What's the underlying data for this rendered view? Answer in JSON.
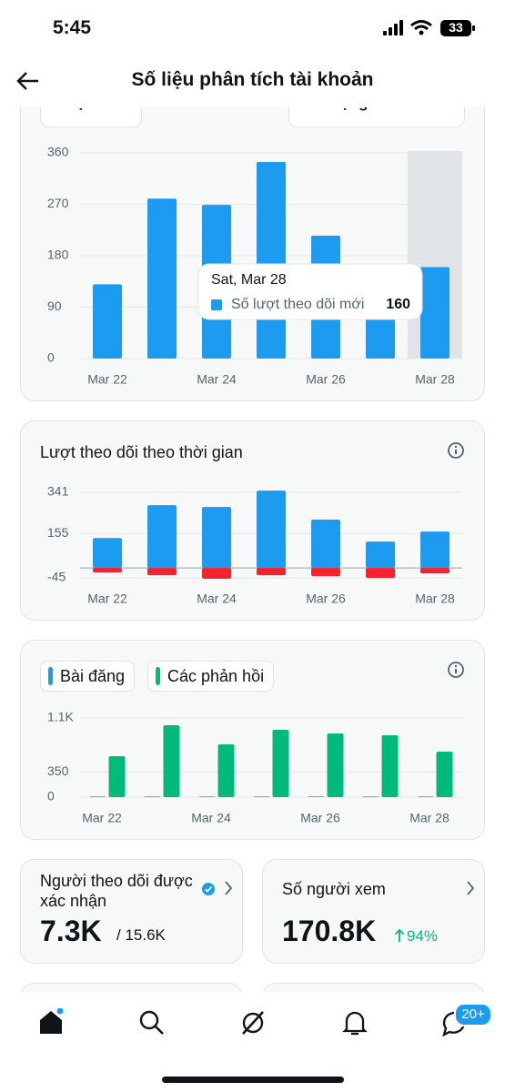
{
  "status_bar": {
    "time": "5:45",
    "battery": "33"
  },
  "header": {
    "title": "Số liệu phân tích tài khoản"
  },
  "controls": {
    "period": "Chọn",
    "chart_style": "Dạng thanh"
  },
  "chart_data": [
    {
      "type": "bar",
      "categories": [
        "Mar 22",
        null,
        "Mar 24",
        null,
        "Mar 26",
        null,
        "Mar 28"
      ],
      "values": [
        130,
        280,
        269,
        344,
        215,
        110,
        160
      ],
      "color": "#1d9bf0",
      "ylim": [
        0,
        360
      ],
      "yticks": [
        0,
        90,
        180,
        270,
        360
      ],
      "grid": true,
      "tooltip": {
        "title": "Sat, Mar 28",
        "label": "Số lượt theo dõi mới"
      }
    },
    {
      "type": "bar",
      "stacked": true,
      "title": "Lượt theo dõi theo thời gian",
      "categories": [
        "Mar 22",
        null,
        "Mar 24",
        null,
        "Mar 26",
        null,
        "Mar 28"
      ],
      "series": [
        {
          "color": "#1d9bf0",
          "values": [
            135,
            283,
            275,
            349,
            218,
            119,
            164
          ]
        },
        {
          "color": "#f4212e",
          "values": [
            -20,
            -33,
            -49,
            -33,
            -37,
            -45,
            -25
          ]
        }
      ],
      "ylim": [
        -60,
        360
      ],
      "yticks": [
        -45,
        155,
        341
      ],
      "grid": true
    },
    {
      "type": "bar",
      "stacked": false,
      "categories": [
        "Mar 22",
        null,
        "Mar 24",
        null,
        "Mar 26",
        null,
        "Mar 28"
      ],
      "series": [
        {
          "name": "Bài đăng",
          "color": "#1d9bf0",
          "values": [
            10,
            10,
            10,
            10,
            10,
            10,
            10
          ]
        },
        {
          "name": "Các phản hồi",
          "color": "#00ba7c",
          "values": [
            569,
            999,
            733,
            936,
            885,
            860,
            632
          ]
        }
      ],
      "ylim": [
        0,
        1100
      ],
      "yticks": [
        0,
        350,
        {
          "value": 1100,
          "label": "1.1K"
        }
      ],
      "grid": true
    }
  ],
  "cards": [
    {
      "title": "Người theo dõi được xác nhận",
      "value": "7.3K",
      "total": "/ 15.6K"
    },
    {
      "title": "Số người xem",
      "value": "170.8K",
      "change": "94%"
    }
  ],
  "nav": {
    "badge": "20+"
  }
}
